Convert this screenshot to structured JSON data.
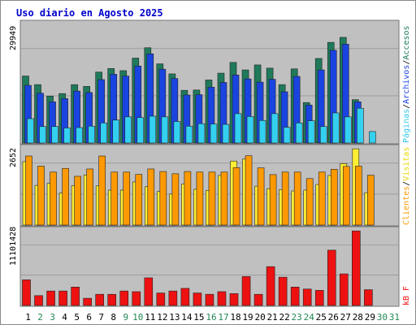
{
  "title": "Uso diario en Agosto 2025",
  "colors": {
    "background": "#ffffff",
    "outer_border": "#8a8a8a",
    "panel_bg": "#c0c0c0",
    "title_text": "#0000cc",
    "accesos": "#1f7a5a",
    "archivos": "#1a44e0",
    "paginas": "#33d0f0",
    "visitas": "#ffee33",
    "clientes": "#ff9900",
    "kb": "#ee1111",
    "weekday_label": "#000000",
    "weekend_label": "#228855"
  },
  "legends": {
    "top": {
      "accesos": "Accesos",
      "archivos": "Archivos",
      "paginas": "Páginas",
      "separator": "/"
    },
    "middle": {
      "visitas": "Visitas",
      "clientes": "Clientes",
      "separator": "/"
    },
    "bottom": {
      "kb": "kB F"
    }
  },
  "chart_data": [
    {
      "type": "bar",
      "panel": "top",
      "title": "",
      "ymax_label": "29949",
      "ylim": [
        0,
        29949
      ],
      "grid": true,
      "categories": [
        "1",
        "2",
        "3",
        "4",
        "5",
        "6",
        "7",
        "8",
        "9",
        "10",
        "11",
        "12",
        "13",
        "14",
        "15",
        "16",
        "17",
        "18",
        "19",
        "20",
        "21",
        "22",
        "23",
        "24",
        "25",
        "26",
        "27",
        "28",
        "29",
        "30",
        "31"
      ],
      "series": [
        {
          "name": "Accesos",
          "values": [
            18700,
            16300,
            13100,
            13800,
            16300,
            15800,
            19800,
            20800,
            20200,
            23700,
            26600,
            22100,
            19300,
            14700,
            14800,
            17600,
            19500,
            22500,
            20400,
            21800,
            20900,
            16300,
            20700,
            11300,
            23600,
            28100,
            29500,
            12100,
            null,
            null,
            null
          ]
        },
        {
          "name": "Archivos",
          "values": [
            16100,
            13900,
            11500,
            12400,
            14500,
            14100,
            17700,
            19200,
            18700,
            21500,
            24900,
            20600,
            18000,
            13400,
            13500,
            15600,
            16900,
            19000,
            17900,
            17000,
            17800,
            14300,
            18600,
            10600,
            20400,
            25900,
            27600,
            11500,
            null,
            null,
            null
          ]
        },
        {
          "name": "Páginas",
          "values": [
            6800,
            4600,
            4600,
            4200,
            4300,
            4700,
            5600,
            6400,
            7300,
            7100,
            7500,
            7300,
            6000,
            4700,
            5400,
            5300,
            5200,
            8200,
            7400,
            6300,
            8200,
            4400,
            5600,
            6200,
            4600,
            8400,
            7300,
            9700,
            3200,
            null,
            null
          ]
        }
      ]
    },
    {
      "type": "bar",
      "panel": "middle",
      "title": "",
      "ymax_label": "2652",
      "ylim": [
        0,
        2652
      ],
      "grid": true,
      "categories": [
        "1",
        "2",
        "3",
        "4",
        "5",
        "6",
        "7",
        "8",
        "9",
        "10",
        "11",
        "12",
        "13",
        "14",
        "15",
        "16",
        "17",
        "18",
        "19",
        "20",
        "21",
        "22",
        "23",
        "24",
        "25",
        "26",
        "27",
        "28",
        "29",
        "30",
        "31"
      ],
      "series": [
        {
          "name": "Visitas",
          "values": [
            2250,
            1410,
            1480,
            1140,
            1400,
            1780,
            1390,
            1240,
            1240,
            1530,
            1360,
            1190,
            1100,
            1460,
            1270,
            1230,
            1760,
            2270,
            2340,
            1380,
            1290,
            1260,
            1210,
            1240,
            1440,
            1760,
            2180,
            2740,
            1150,
            null,
            null
          ]
        },
        {
          "name": "Clientes",
          "values": [
            2450,
            2090,
            1880,
            2010,
            1730,
            1990,
            2450,
            1880,
            1880,
            1800,
            1990,
            1900,
            1820,
            1900,
            1880,
            1880,
            1880,
            2040,
            2460,
            2030,
            1790,
            1880,
            1880,
            1650,
            1880,
            1980,
            2080,
            2090,
            1770,
            null,
            null
          ]
        }
      ]
    },
    {
      "type": "bar",
      "panel": "bottom",
      "title": "",
      "ymax_label": "11101428",
      "ylim": [
        0,
        11101428
      ],
      "grid": true,
      "categories": [
        "1",
        "2",
        "3",
        "4",
        "5",
        "6",
        "7",
        "8",
        "9",
        "10",
        "11",
        "12",
        "13",
        "14",
        "15",
        "16",
        "17",
        "18",
        "19",
        "20",
        "21",
        "22",
        "23",
        "24",
        "25",
        "26",
        "27",
        "28",
        "29",
        "30",
        "31"
      ],
      "series": [
        {
          "name": "kB F",
          "values": [
            3900000,
            1500000,
            2200000,
            2200000,
            2800000,
            1100000,
            1700000,
            1700000,
            2200000,
            2100000,
            4200000,
            1900000,
            2200000,
            2600000,
            1900000,
            1700000,
            2100000,
            1800000,
            4400000,
            1700000,
            5900000,
            4300000,
            2800000,
            2500000,
            2300000,
            8400000,
            4800000,
            11600000,
            2400000,
            null,
            null
          ]
        }
      ]
    }
  ],
  "x_axis": {
    "labels": [
      "1",
      "2",
      "3",
      "4",
      "5",
      "6",
      "7",
      "8",
      "9",
      "10",
      "11",
      "12",
      "13",
      "14",
      "15",
      "16",
      "17",
      "18",
      "19",
      "20",
      "21",
      "22",
      "23",
      "24",
      "25",
      "26",
      "27",
      "28",
      "29",
      "30",
      "31"
    ],
    "weekend": [
      false,
      true,
      true,
      false,
      false,
      false,
      false,
      false,
      true,
      true,
      false,
      false,
      false,
      false,
      false,
      true,
      true,
      false,
      false,
      false,
      false,
      false,
      true,
      true,
      false,
      false,
      false,
      false,
      false,
      true,
      true
    ]
  }
}
